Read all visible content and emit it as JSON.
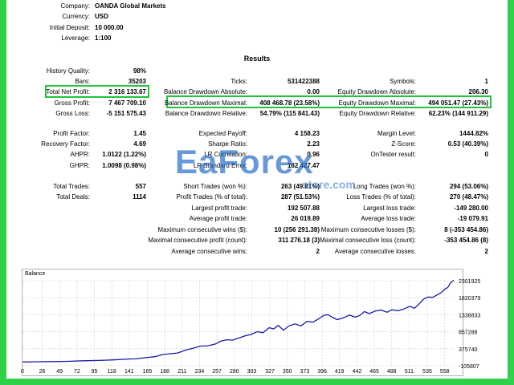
{
  "header": {
    "company_label": "Company:",
    "company": "OANDA Global Markets",
    "currency_label": "Currency:",
    "currency": "USD",
    "deposit_label": "Initial Deposit:",
    "deposit": "10 000.00",
    "leverage_label": "Leverage:",
    "leverage": "1:100"
  },
  "results_title": "Results",
  "stats": {
    "history_quality_label": "History Quality:",
    "history_quality": "98%",
    "bars_label": "Bars:",
    "bars": "35203",
    "ticks_label": "Ticks:",
    "ticks": "531422388",
    "symbols_label": "Symbols:",
    "symbols": "1",
    "total_net_profit_label": "Total Net Profit:",
    "total_net_profit": "2 316 133.67",
    "bal_dd_abs_label": "Balance Drawdown Absolute:",
    "bal_dd_abs": "0.00",
    "eq_dd_abs_label": "Equity Drawdown Absolute:",
    "eq_dd_abs": "206.30",
    "gross_profit_label": "Gross Profit:",
    "gross_profit": "7 467 709.10",
    "bal_dd_max_label": "Balance Drawdown Maximal:",
    "bal_dd_max": "408 468.78 (23.58%)",
    "eq_dd_max_label": "Equity Drawdown Maximal:",
    "eq_dd_max": "494 051.47 (27.43%)",
    "gross_loss_label": "Gross Loss:",
    "gross_loss": "-5 151 575.43",
    "bal_dd_rel_label": "Balance Drawdown Relative:",
    "bal_dd_rel": "54.79% (115 841.43)",
    "eq_dd_rel_label": "Equity Drawdown Relative:",
    "eq_dd_rel": "62.23% (144 911.29)",
    "profit_factor_label": "Profit Factor:",
    "profit_factor": "1.45",
    "expected_payoff_label": "Expected Payoff:",
    "expected_payoff": "4 158.23",
    "margin_level_label": "Margin Level:",
    "margin_level": "1444.82%",
    "recovery_factor_label": "Recovery Factor:",
    "recovery_factor": "4.69",
    "sharpe_label": "Sharpe Ratio:",
    "sharpe": "2.23",
    "zscore_label": "Z-Score:",
    "zscore": "0.53 (40.39%)",
    "ahpr_label": "AHPR:",
    "ahpr": "1.0122 (1.22%)",
    "lr_corr_label": "LR Correlation:",
    "lr_corr": "0.96",
    "ontester_label": "OnTester result:",
    "ontester": "0",
    "ghpr_label": "GHPR:",
    "ghpr": "1.0098 (0.98%)",
    "lr_std_label": "LR Standard Error:",
    "lr_std": "182 427.47",
    "total_trades_label": "Total Trades:",
    "total_trades": "557",
    "short_trades_label": "Short Trades (won %):",
    "short_trades": "263 (49.81%)",
    "long_trades_label": "Long Trades (won %):",
    "long_trades": "294 (53.06%)",
    "total_deals_label": "Total Deals:",
    "total_deals": "1114",
    "profit_trades_label": "Profit Trades (% of total):",
    "profit_trades": "287 (51.53%)",
    "loss_trades_label": "Loss Trades (% of total):",
    "loss_trades": "270 (48.47%)",
    "largest_profit_label": "Largest profit trade:",
    "largest_profit": "192 507.88",
    "largest_loss_label": "Largest loss trade:",
    "largest_loss": "-149 280.00",
    "avg_profit_label": "Average profit trade:",
    "avg_profit": "26 019.89",
    "avg_loss_label": "Average loss trade:",
    "avg_loss": "-19 079.91",
    "max_consec_wins_label": "Maximum consecutive wins ($):",
    "max_consec_wins": "10 (256 291.38)",
    "max_consec_losses_label": "Maximum consecutive losses ($):",
    "max_consec_losses": "8 (-353 454.86)",
    "maximal_consec_profit_label": "Maximal consecutive profit (count):",
    "maximal_consec_profit": "311 276.18 (3)",
    "maximal_consec_loss_label": "Maximal consecutive loss (count):",
    "maximal_consec_loss": "-353 454.86 (8)",
    "avg_consec_wins_label": "Average consecutive wins:",
    "avg_consec_wins": "2",
    "avg_consec_losses_label": "Average consecutive losses:",
    "avg_consec_losses": "2"
  },
  "watermark": {
    "word": "EaForex",
    "sub": "store.com"
  },
  "colors": {
    "frame": "#2fd14a",
    "highlight": "#22c33a",
    "line": "#1a1aa8",
    "watermark": "#286ec8"
  },
  "chart_data": {
    "type": "line",
    "title": "Balance",
    "x_ticks": [
      "0",
      "26",
      "49",
      "72",
      "95",
      "118",
      "141",
      "165",
      "188",
      "211",
      "234",
      "257",
      "280",
      "303",
      "327",
      "350",
      "373",
      "396",
      "419",
      "442",
      "465",
      "488",
      "511",
      "535",
      "558"
    ],
    "y_ticks": [
      "2301925",
      "1820379",
      "1338833",
      "857288",
      "375740",
      "-105807"
    ],
    "ylim": [
      -105807,
      2301925
    ],
    "xlim": [
      0,
      570
    ],
    "series": [
      {
        "values": [
          [
            0,
            0
          ],
          [
            20,
            8000
          ],
          [
            40,
            12000
          ],
          [
            60,
            20000
          ],
          [
            80,
            35000
          ],
          [
            100,
            45000
          ],
          [
            120,
            60000
          ],
          [
            140,
            85000
          ],
          [
            150,
            90000
          ],
          [
            165,
            130000
          ],
          [
            175,
            150000
          ],
          [
            185,
            210000
          ],
          [
            195,
            235000
          ],
          [
            205,
            255000
          ],
          [
            215,
            335000
          ],
          [
            225,
            390000
          ],
          [
            235,
            450000
          ],
          [
            245,
            460000
          ],
          [
            255,
            510000
          ],
          [
            262,
            590000
          ],
          [
            270,
            630000
          ],
          [
            278,
            620000
          ],
          [
            286,
            680000
          ],
          [
            294,
            740000
          ],
          [
            302,
            780000
          ],
          [
            310,
            860000
          ],
          [
            318,
            830000
          ],
          [
            326,
            970000
          ],
          [
            332,
            940000
          ],
          [
            338,
            1040000
          ],
          [
            345,
            900000
          ],
          [
            352,
            1020000
          ],
          [
            360,
            1080000
          ],
          [
            368,
            1020000
          ],
          [
            376,
            1150000
          ],
          [
            384,
            1130000
          ],
          [
            392,
            1230000
          ],
          [
            398,
            1320000
          ],
          [
            404,
            1340000
          ],
          [
            410,
            1260000
          ],
          [
            416,
            1200000
          ],
          [
            424,
            1250000
          ],
          [
            432,
            1330000
          ],
          [
            440,
            1270000
          ],
          [
            446,
            1320000
          ],
          [
            452,
            1430000
          ],
          [
            458,
            1370000
          ],
          [
            466,
            1440000
          ],
          [
            474,
            1470000
          ],
          [
            482,
            1410000
          ],
          [
            488,
            1480000
          ],
          [
            496,
            1450000
          ],
          [
            504,
            1500000
          ],
          [
            512,
            1580000
          ],
          [
            518,
            1520000
          ],
          [
            524,
            1640000
          ],
          [
            530,
            1780000
          ],
          [
            536,
            1840000
          ],
          [
            542,
            1830000
          ],
          [
            548,
            1900000
          ],
          [
            553,
            1960000
          ],
          [
            558,
            2060000
          ],
          [
            562,
            2110000
          ],
          [
            566,
            2250000
          ],
          [
            570,
            2316133
          ]
        ]
      }
    ]
  }
}
